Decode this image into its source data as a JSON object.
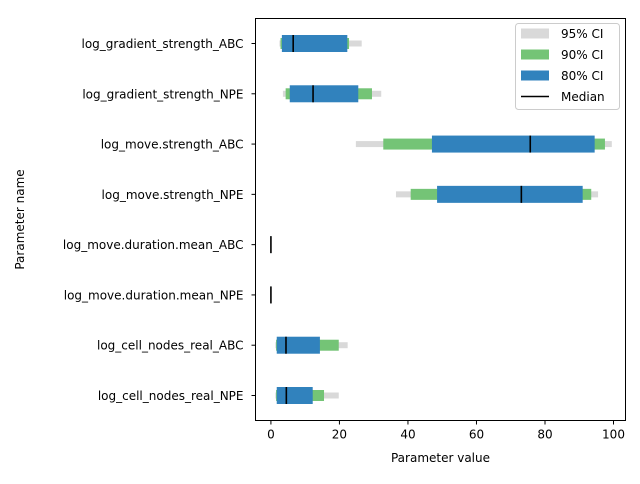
{
  "chart_data": {
    "type": "interval",
    "title": "",
    "xlabel": "Parameter value",
    "ylabel": "Parameter name",
    "xlim": [
      -4.5,
      103.5
    ],
    "xticks": [
      0,
      20,
      40,
      60,
      80,
      100
    ],
    "xtick_labels": [
      "0",
      "20",
      "40",
      "60",
      "80",
      "100"
    ],
    "legend_position": "top-right",
    "grid": false,
    "colors": {
      "ci95": "#d9d9d9",
      "ci90": "#74c476",
      "ci80": "#3182bd",
      "median": "#000000"
    },
    "legend": [
      {
        "key": "ci95",
        "label": "95% CI"
      },
      {
        "key": "ci90",
        "label": "90% CI"
      },
      {
        "key": "ci80",
        "label": "80% CI"
      },
      {
        "key": "median",
        "label": "Median"
      }
    ],
    "parameters": [
      {
        "name": "log_gradient_strength_ABC",
        "ci95": [
          2.5,
          26.5
        ],
        "ci90": [
          2.8,
          22.8
        ],
        "ci80": [
          3.2,
          22.3
        ],
        "median": 6.5
      },
      {
        "name": "log_gradient_strength_NPE",
        "ci95": [
          3.5,
          32.2
        ],
        "ci90": [
          4.3,
          29.5
        ],
        "ci80": [
          5.5,
          25.5
        ],
        "median": 12.3
      },
      {
        "name": "log_move.strength_ABC",
        "ci95": [
          24.8,
          99.5
        ],
        "ci90": [
          32.8,
          97.5
        ],
        "ci80": [
          47.0,
          94.5
        ],
        "median": 75.7
      },
      {
        "name": "log_move.strength_NPE",
        "ci95": [
          36.5,
          95.5
        ],
        "ci90": [
          40.8,
          93.5
        ],
        "ci80": [
          48.5,
          91.0
        ],
        "median": 73.1
      },
      {
        "name": "log_move.duration.mean_ABC",
        "ci95": [
          -0.15,
          0.15
        ],
        "ci90": [
          -0.12,
          0.12
        ],
        "ci80": [
          -0.1,
          0.1
        ],
        "median": 0.0
      },
      {
        "name": "log_move.duration.mean_NPE",
        "ci95": [
          -0.15,
          0.15
        ],
        "ci90": [
          -0.12,
          0.12
        ],
        "ci80": [
          -0.1,
          0.1
        ],
        "median": 0.0
      },
      {
        "name": "log_cell_nodes_real_ABC",
        "ci95": [
          1.3,
          22.4
        ],
        "ci90": [
          1.5,
          19.8
        ],
        "ci80": [
          1.7,
          14.3
        ],
        "median": 4.4
      },
      {
        "name": "log_cell_nodes_real_NPE",
        "ci95": [
          1.3,
          19.8
        ],
        "ci90": [
          1.5,
          15.5
        ],
        "ci80": [
          1.7,
          12.2
        ],
        "median": 4.5
      }
    ]
  }
}
